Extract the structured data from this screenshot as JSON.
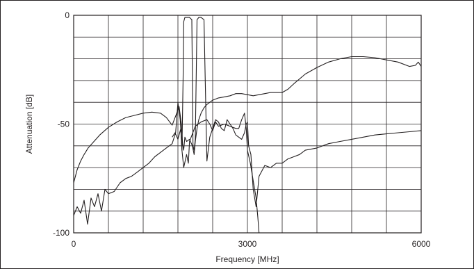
{
  "chart_data": {
    "type": "line",
    "title": "",
    "xlabel": "Frequency [MHz]",
    "ylabel": "Attenuation [dB]",
    "xlim": [
      0,
      6000
    ],
    "ylim": [
      -100,
      0
    ],
    "x_ticks": [
      0,
      3000,
      6000
    ],
    "x_tick_labels": [
      "0",
      "3000",
      "6000"
    ],
    "y_ticks": [
      0,
      -50,
      -100
    ],
    "y_tick_labels": [
      "0",
      "-50",
      "-100"
    ],
    "x_grid_step": 600,
    "y_grid_step": 10,
    "grid": true,
    "legend": "none",
    "line_color": "#231f20",
    "series": [
      {
        "x": [
          0,
          60,
          120,
          180,
          250,
          350,
          450,
          600,
          750,
          900,
          1050,
          1200,
          1350,
          1500,
          1600,
          1700,
          1780,
          1820,
          1860,
          1880,
          1900,
          1920,
          1950,
          2000,
          2050,
          2080,
          2100,
          2130,
          2160,
          2200,
          2250,
          2300,
          2400,
          2500,
          2600,
          2700,
          2800,
          2900,
          3000,
          3100,
          3200,
          3300,
          3400,
          3500,
          3600,
          3700,
          3800,
          4000,
          4200,
          4400,
          4600,
          4800,
          5000,
          5200,
          5400,
          5600,
          5800,
          5900,
          5950,
          6000
        ],
        "y": [
          -77,
          -71,
          -67,
          -64,
          -61,
          -58,
          -55,
          -51.5,
          -49,
          -47,
          -46,
          -45,
          -44.5,
          -45,
          -47,
          -50.5,
          -45,
          -42,
          -50,
          -59,
          -62,
          -56,
          -58,
          -57,
          -60,
          -64,
          -58,
          -52,
          -48,
          -45,
          -42.5,
          -41,
          -39,
          -38,
          -37.5,
          -37,
          -36,
          -36,
          -36.5,
          -37,
          -36.5,
          -36,
          -35.5,
          -35.5,
          -35.5,
          -34,
          -31.5,
          -27,
          -24,
          -21.5,
          -20,
          -19,
          -19,
          -19.5,
          -20.5,
          -21.5,
          -23.5,
          -23,
          -21.5,
          -23.5
        ]
      },
      {
        "x": [
          0,
          60,
          120,
          180,
          240,
          300,
          360,
          420,
          480,
          540,
          600,
          700,
          800,
          900,
          1000,
          1100,
          1200,
          1300,
          1400,
          1500,
          1600,
          1700,
          1760,
          1800,
          1840,
          1870,
          1890,
          1900,
          1920,
          1950,
          2000,
          2040,
          2060,
          2080,
          2100,
          2130,
          2160,
          2200,
          2250,
          2300,
          2350,
          2400,
          2450,
          2500,
          2550,
          2600,
          2650,
          2700,
          2750,
          2800,
          2850,
          2900,
          2950,
          2980,
          3000,
          3020,
          3060,
          3100,
          3150,
          3200,
          3300,
          3400,
          3500,
          3600,
          3700,
          3800,
          3900,
          4000,
          4200,
          4400,
          4600,
          4800,
          5000,
          5200,
          5400,
          5600,
          5800,
          6000
        ],
        "y": [
          -92,
          -88,
          -91,
          -85,
          -96,
          -84,
          -88,
          -82,
          -90,
          -80,
          -82,
          -81,
          -77,
          -75,
          -74,
          -72,
          -70,
          -68,
          -65,
          -63,
          -61,
          -59,
          -54,
          -40,
          -48,
          -62,
          -28,
          -3,
          -1,
          -1,
          -1,
          -2,
          -60,
          -62,
          -57,
          -2,
          -1,
          -1,
          -2,
          -67,
          -56,
          -52,
          -48,
          -49,
          -52,
          -53,
          -48,
          -50,
          -52,
          -55,
          -56,
          -57,
          -54,
          -50,
          -49,
          -60,
          -64,
          -80,
          -88,
          -74,
          -69,
          -70,
          -68,
          -68,
          -66,
          -65,
          -64,
          -62,
          -61,
          -59,
          -58,
          -57,
          -56,
          -55,
          -54.5,
          -54,
          -53.5,
          -53
        ]
      },
      {
        "x": [
          1700,
          1750,
          1800,
          1850,
          1870,
          1900,
          1950,
          1980,
          2000,
          2100,
          2200,
          2300,
          2350,
          2400,
          2450,
          2500,
          2600,
          2700,
          2800,
          2850,
          2900,
          2950,
          2980,
          3000,
          3050,
          3100,
          3150,
          3180,
          3200
        ],
        "y": [
          -56,
          -54,
          -57,
          -52,
          -62,
          -70,
          -64,
          -68,
          -58,
          -51,
          -49,
          -48,
          -50,
          -53,
          -49,
          -51,
          -50,
          -51,
          -52,
          -52,
          -48,
          -45,
          -52,
          -62,
          -68,
          -76,
          -84,
          -93,
          -100
        ]
      }
    ]
  }
}
